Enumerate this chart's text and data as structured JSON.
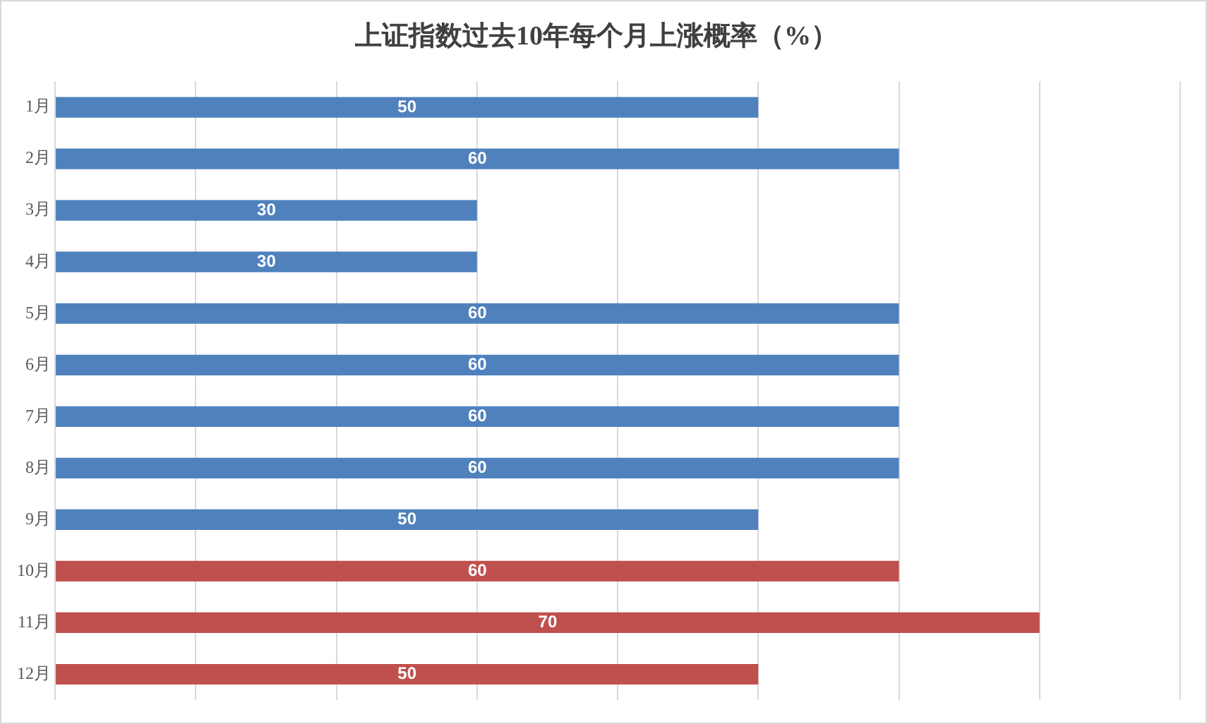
{
  "chart_data": {
    "type": "bar",
    "orientation": "horizontal",
    "title": "上证指数过去10年每个月上涨概率（%）",
    "categories": [
      "1月",
      "2月",
      "3月",
      "4月",
      "5月",
      "6月",
      "7月",
      "8月",
      "9月",
      "10月",
      "11月",
      "12月"
    ],
    "values": [
      50,
      60,
      30,
      30,
      60,
      60,
      60,
      60,
      50,
      60,
      70,
      50
    ],
    "colors": [
      "#4f81bd",
      "#4f81bd",
      "#4f81bd",
      "#4f81bd",
      "#4f81bd",
      "#4f81bd",
      "#4f81bd",
      "#4f81bd",
      "#4f81bd",
      "#c0504d",
      "#c0504d",
      "#c0504d"
    ],
    "xlim": [
      0,
      80
    ],
    "xticks": [
      {
        "value": 0,
        "label": null
      },
      {
        "value": 10,
        "label": null
      },
      {
        "value": 20,
        "label": null
      },
      {
        "value": 30,
        "label": null
      },
      {
        "value": 40,
        "label": null
      },
      {
        "value": 50,
        "label": null
      },
      {
        "value": 60,
        "label": null
      },
      {
        "value": 70,
        "label": null
      },
      {
        "value": 80,
        "label": null
      }
    ],
    "grid": "x",
    "tick_labels": "y",
    "data_labels": true,
    "legend": false
  }
}
